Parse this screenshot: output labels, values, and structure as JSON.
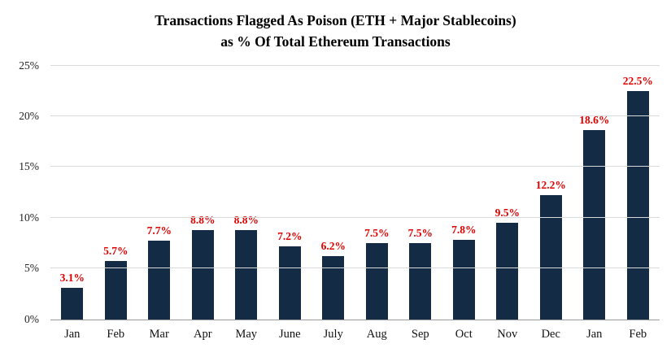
{
  "chart_data": {
    "type": "bar",
    "title_line1": "Transactions Flagged As Poison (ETH + Major Stablecoins)",
    "title_line2": "as % Of Total Ethereum Transactions",
    "categories": [
      "Jan",
      "Feb",
      "Mar",
      "Apr",
      "May",
      "June",
      "July",
      "Aug",
      "Sep",
      "Oct",
      "Nov",
      "Dec",
      "Jan",
      "Feb"
    ],
    "values": [
      3.1,
      5.7,
      7.7,
      8.8,
      8.8,
      7.2,
      6.2,
      7.5,
      7.5,
      7.8,
      9.5,
      12.2,
      18.6,
      22.5
    ],
    "data_labels": [
      "3.1%",
      "5.7%",
      "7.7%",
      "8.8%",
      "8.8%",
      "7.2%",
      "6.2%",
      "7.5%",
      "7.5%",
      "7.8%",
      "9.5%",
      "12.2%",
      "18.6%",
      "22.5%"
    ],
    "y_ticks": [
      "0%",
      "5%",
      "10%",
      "15%",
      "20%",
      "25%"
    ],
    "ylim": [
      0,
      25
    ],
    "xlabel": "",
    "ylabel": "",
    "grid": true,
    "legend": false,
    "bar_color": "#142b45",
    "label_color": "#e00000",
    "gridline_color": "#d9d9d9"
  }
}
